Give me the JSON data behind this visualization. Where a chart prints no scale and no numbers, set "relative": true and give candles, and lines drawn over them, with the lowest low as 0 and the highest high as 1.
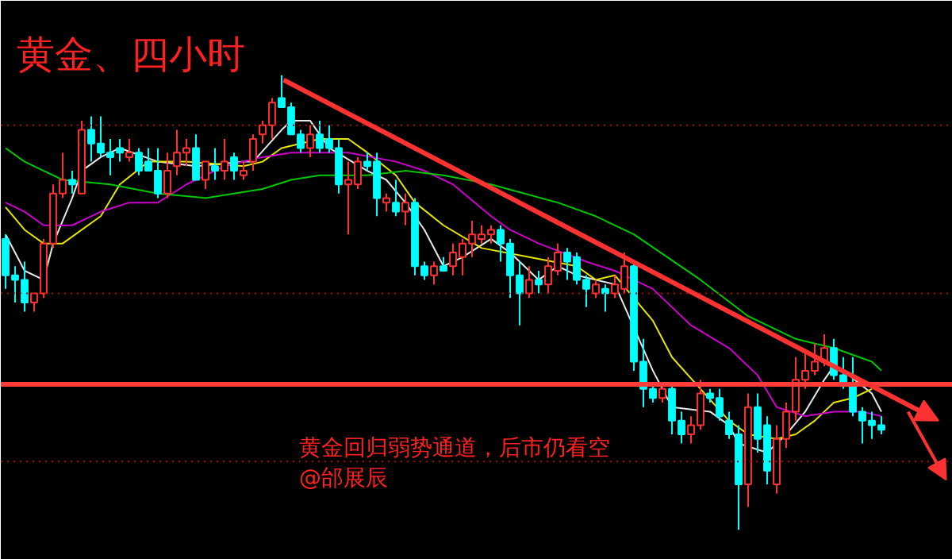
{
  "chart_data": {
    "type": "candlestick",
    "title": "黄金、四小时",
    "relative": true,
    "categories": [
      null,
      null,
      null,
      null,
      null,
      null,
      null,
      null,
      null,
      null,
      null,
      null,
      null,
      null,
      null,
      null,
      null,
      null,
      null,
      null,
      null,
      null,
      null,
      null,
      null,
      null,
      null,
      null,
      null,
      null,
      null,
      null,
      null,
      null,
      null,
      null,
      null,
      null,
      null,
      null,
      null,
      null,
      null,
      null,
      null,
      null,
      null,
      null,
      null,
      null,
      null,
      null,
      null,
      null,
      null,
      null,
      null,
      null,
      null,
      null,
      null,
      null,
      null,
      null,
      null,
      null,
      null,
      null,
      null,
      null,
      null,
      null,
      null,
      null,
      null,
      null,
      null,
      null,
      null,
      null,
      null,
      null,
      null,
      null,
      null,
      null,
      null,
      null,
      null,
      null,
      null,
      null,
      null
    ],
    "ohlc": [
      [
        0.64,
        0.65,
        0.53,
        0.56
      ],
      [
        0.56,
        0.58,
        0.5,
        0.55
      ],
      [
        0.55,
        0.59,
        0.48,
        0.5
      ],
      [
        0.5,
        0.52,
        0.48,
        0.52
      ],
      [
        0.52,
        0.64,
        0.51,
        0.63
      ],
      [
        0.63,
        0.76,
        0.62,
        0.74
      ],
      [
        0.74,
        0.83,
        0.73,
        0.77
      ],
      [
        0.77,
        0.79,
        0.74,
        0.76
      ],
      [
        0.74,
        0.9,
        0.74,
        0.88
      ],
      [
        0.88,
        0.91,
        0.81,
        0.85
      ],
      [
        0.85,
        0.91,
        0.82,
        0.83
      ],
      [
        0.83,
        0.86,
        0.78,
        0.82
      ],
      [
        0.84,
        0.86,
        0.81,
        0.83
      ],
      [
        0.82,
        0.86,
        0.81,
        0.83
      ],
      [
        0.83,
        0.84,
        0.78,
        0.79
      ],
      [
        0.81,
        0.84,
        0.79,
        0.79
      ],
      [
        0.79,
        0.84,
        0.73,
        0.74
      ],
      [
        0.74,
        0.83,
        0.73,
        0.79
      ],
      [
        0.8,
        0.88,
        0.78,
        0.83
      ],
      [
        0.83,
        0.86,
        0.8,
        0.84
      ],
      [
        0.84,
        0.87,
        0.77,
        0.77
      ],
      [
        0.77,
        0.81,
        0.75,
        0.81
      ],
      [
        0.8,
        0.84,
        0.77,
        0.79
      ],
      [
        0.79,
        0.86,
        0.77,
        0.81
      ],
      [
        0.82,
        0.83,
        0.77,
        0.79
      ],
      [
        0.78,
        0.81,
        0.77,
        0.79
      ],
      [
        0.81,
        0.87,
        0.79,
        0.86
      ],
      [
        0.87,
        0.9,
        0.85,
        0.89
      ],
      [
        0.89,
        0.95,
        0.86,
        0.94
      ],
      [
        0.95,
        1.0,
        0.93,
        0.93
      ],
      [
        0.93,
        0.94,
        0.87,
        0.87
      ],
      [
        0.87,
        0.88,
        0.83,
        0.84
      ],
      [
        0.84,
        0.89,
        0.82,
        0.87
      ],
      [
        0.87,
        0.9,
        0.83,
        0.84
      ],
      [
        0.86,
        0.89,
        0.83,
        0.84
      ],
      [
        0.84,
        0.86,
        0.74,
        0.76
      ],
      [
        0.76,
        0.81,
        0.65,
        0.77
      ],
      [
        0.76,
        0.82,
        0.75,
        0.81
      ],
      [
        0.81,
        0.83,
        0.79,
        0.8
      ],
      [
        0.81,
        0.83,
        0.69,
        0.73
      ],
      [
        0.72,
        0.74,
        0.7,
        0.73
      ],
      [
        0.72,
        0.77,
        0.69,
        0.7
      ],
      [
        0.7,
        0.74,
        0.67,
        0.72
      ],
      [
        0.72,
        0.73,
        0.56,
        0.58
      ],
      [
        0.58,
        0.59,
        0.55,
        0.56
      ],
      [
        0.56,
        0.59,
        0.54,
        0.58
      ],
      [
        0.58,
        0.6,
        0.57,
        0.57
      ],
      [
        0.58,
        0.63,
        0.56,
        0.61
      ],
      [
        0.6,
        0.64,
        0.56,
        0.63
      ],
      [
        0.63,
        0.68,
        0.6,
        0.65
      ],
      [
        0.64,
        0.67,
        0.63,
        0.65
      ],
      [
        0.65,
        0.67,
        0.63,
        0.66
      ],
      [
        0.66,
        0.67,
        0.59,
        0.63
      ],
      [
        0.63,
        0.64,
        0.51,
        0.56
      ],
      [
        0.56,
        0.59,
        0.45,
        0.52
      ],
      [
        0.52,
        0.58,
        0.51,
        0.55
      ],
      [
        0.55,
        0.57,
        0.52,
        0.54
      ],
      [
        0.54,
        0.6,
        0.52,
        0.58
      ],
      [
        0.57,
        0.63,
        0.56,
        0.61
      ],
      [
        0.61,
        0.62,
        0.55,
        0.59
      ],
      [
        0.6,
        0.61,
        0.54,
        0.55
      ],
      [
        0.55,
        0.56,
        0.49,
        0.53
      ],
      [
        0.52,
        0.55,
        0.51,
        0.54
      ],
      [
        0.53,
        0.54,
        0.48,
        0.52
      ],
      [
        0.52,
        0.56,
        0.51,
        0.54
      ],
      [
        0.53,
        0.61,
        0.52,
        0.58
      ],
      [
        0.58,
        0.59,
        0.35,
        0.37
      ],
      [
        0.37,
        0.42,
        0.27,
        0.31
      ],
      [
        0.31,
        0.32,
        0.28,
        0.29
      ],
      [
        0.29,
        0.32,
        0.28,
        0.31
      ],
      [
        0.31,
        0.32,
        0.21,
        0.24
      ],
      [
        0.24,
        0.26,
        0.19,
        0.21
      ],
      [
        0.21,
        0.25,
        0.19,
        0.23
      ],
      [
        0.23,
        0.33,
        0.22,
        0.3
      ],
      [
        0.3,
        0.31,
        0.28,
        0.29
      ],
      [
        0.29,
        0.31,
        0.24,
        0.25
      ],
      [
        0.24,
        0.26,
        0.2,
        0.21
      ],
      [
        0.21,
        0.23,
        0.0,
        0.1
      ],
      [
        0.1,
        0.3,
        0.05,
        0.27
      ],
      [
        0.27,
        0.3,
        0.17,
        0.2
      ],
      [
        0.23,
        0.25,
        0.1,
        0.13
      ],
      [
        0.1,
        0.23,
        0.08,
        0.2
      ],
      [
        0.2,
        0.28,
        0.18,
        0.26
      ],
      [
        0.26,
        0.38,
        0.24,
        0.33
      ],
      [
        0.33,
        0.39,
        0.31,
        0.35
      ],
      [
        0.35,
        0.41,
        0.34,
        0.37
      ],
      [
        0.37,
        0.43,
        0.36,
        0.4
      ],
      [
        0.4,
        0.42,
        0.33,
        0.34
      ],
      [
        0.34,
        0.38,
        0.31,
        0.32
      ],
      [
        0.32,
        0.38,
        0.25,
        0.26
      ],
      [
        0.26,
        0.27,
        0.19,
        0.24
      ],
      [
        0.24,
        0.26,
        0.2,
        0.23
      ],
      [
        0.23,
        0.25,
        0.21,
        0.22
      ]
    ],
    "colors": [
      "#00ffff",
      "#00ffff",
      "#00ffff",
      "#ff3232",
      "#ff3232",
      "#ff3232",
      "#ff3232",
      "#00ffff",
      "#ff3232",
      "#00ffff",
      "#00ffff",
      "#00ffff",
      "#00ffff",
      "#ff3232",
      "#00ffff",
      "#00ffff",
      "#00ffff",
      "#ff3232",
      "#ff3232",
      "#ff3232",
      "#00ffff",
      "#ff3232",
      "#00ffff",
      "#ff3232",
      "#00ffff",
      "#ff3232",
      "#ff3232",
      "#ff3232",
      "#ff3232",
      "#00ffff",
      "#00ffff",
      "#00ffff",
      "#ff3232",
      "#00ffff",
      "#00ffff",
      "#00ffff",
      "#ff3232",
      "#ff3232",
      "#00ffff",
      "#00ffff",
      "#ff3232",
      "#00ffff",
      "#ff3232",
      "#00ffff",
      "#00ffff",
      "#ff3232",
      "#00ffff",
      "#ff3232",
      "#ff3232",
      "#ff3232",
      "#ff3232",
      "#ff3232",
      "#00ffff",
      "#00ffff",
      "#00ffff",
      "#ff3232",
      "#00ffff",
      "#ff3232",
      "#ff3232",
      "#00ffff",
      "#00ffff",
      "#00ffff",
      "#ff3232",
      "#00ffff",
      "#ff3232",
      "#ff3232",
      "#00ffff",
      "#00ffff",
      "#00ffff",
      "#ff3232",
      "#00ffff",
      "#00ffff",
      "#ff3232",
      "#ff3232",
      "#00ffff",
      "#00ffff",
      "#00ffff",
      "#00ffff",
      "#ff3232",
      "#00ffff",
      "#00ffff",
      "#ff3232",
      "#ff3232",
      "#ff3232",
      "#ff3232",
      "#ff3232",
      "#ff3232",
      "#00ffff",
      "#00ffff",
      "#00ffff",
      "#00ffff",
      "#00ffff",
      "#00ffff"
    ],
    "series": [
      {
        "type": "line",
        "color": "#e8e8e8",
        "values": [
          0.65,
          null,
          0.57,
          null,
          0.55,
          0.63,
          null,
          0.73,
          0.79,
          null,
          0.82,
          null,
          0.84,
          null,
          null,
          null,
          0.81,
          null,
          null,
          null,
          0.8,
          null,
          null,
          null,
          null,
          0.81,
          0.81,
          null,
          null,
          0.88,
          0.9,
          null,
          0.9,
          null,
          0.84,
          null,
          null,
          null,
          0.79,
          null,
          0.77,
          null,
          0.72,
          null,
          0.66,
          null,
          0.58,
          null,
          0.6,
          null,
          null,
          0.64,
          null,
          0.61,
          null,
          null,
          0.55,
          null,
          0.58,
          null,
          0.56,
          null,
          null,
          null,
          0.54,
          null,
          null,
          null,
          0.35,
          null,
          0.27,
          null,
          null,
          null,
          0.26,
          null,
          0.23,
          0.19,
          null,
          null,
          0.17,
          null,
          0.21,
          null,
          0.26,
          null,
          0.33,
          0.36,
          0.35,
          null,
          null,
          0.3,
          0.26
        ]
      },
      {
        "type": "line",
        "color": "#e6e600",
        "values": [
          0.71,
          null,
          0.66,
          null,
          0.63,
          null,
          0.63,
          null,
          null,
          null,
          0.69,
          null,
          0.76,
          null,
          null,
          0.81,
          null,
          null,
          null,
          0.81,
          null,
          null,
          null,
          null,
          null,
          0.8,
          null,
          0.81,
          null,
          0.84,
          null,
          null,
          null,
          0.86,
          null,
          null,
          0.86,
          null,
          0.83,
          null,
          null,
          0.78,
          null,
          0.72,
          null,
          null,
          0.67,
          null,
          null,
          null,
          0.62,
          null,
          null,
          null,
          null,
          0.6,
          null,
          null,
          null,
          null,
          0.58,
          null,
          0.55,
          null,
          0.56,
          null,
          0.51,
          null,
          0.46,
          null,
          0.38,
          null,
          null,
          0.31,
          null,
          null,
          0.24,
          null,
          0.21,
          null,
          null,
          0.2,
          null,
          0.21,
          null,
          0.24,
          null,
          0.28,
          null,
          0.29,
          null,
          0.31,
          null
        ]
      },
      {
        "type": "line",
        "color": "#cc00cc",
        "values": [
          0.72,
          null,
          0.7,
          null,
          0.67,
          null,
          null,
          0.67,
          null,
          null,
          0.7,
          null,
          null,
          0.72,
          null,
          null,
          0.72,
          null,
          null,
          0.76,
          null,
          null,
          null,
          0.8,
          null,
          null,
          null,
          0.82,
          null,
          null,
          0.83,
          null,
          null,
          null,
          0.83,
          null,
          0.83,
          null,
          null,
          null,
          null,
          0.81,
          null,
          null,
          0.79,
          null,
          null,
          0.76,
          null,
          null,
          null,
          0.69,
          null,
          0.66,
          null,
          null,
          0.63,
          null,
          null,
          null,
          null,
          0.59,
          null,
          null,
          0.57,
          null,
          null,
          null,
          0.53,
          null,
          null,
          null,
          0.45,
          null,
          null,
          null,
          0.4,
          null,
          null,
          0.34,
          null,
          0.27,
          null,
          null,
          0.25,
          null,
          null,
          0.26,
          null,
          null,
          0.26,
          null,
          0.25
        ]
      },
      {
        "type": "line",
        "color": "#00c800",
        "values": [
          0.84,
          null,
          0.81,
          null,
          null,
          null,
          0.77,
          null,
          null,
          null,
          null,
          0.76,
          null,
          null,
          null,
          null,
          0.74,
          null,
          null,
          null,
          null,
          0.73,
          null,
          null,
          null,
          null,
          null,
          0.75,
          null,
          null,
          0.77,
          null,
          null,
          0.78,
          null,
          null,
          null,
          null,
          0.78,
          null,
          null,
          null,
          0.79,
          null,
          null,
          null,
          0.78,
          null,
          null,
          null,
          null,
          0.76,
          null,
          null,
          null,
          null,
          null,
          null,
          0.72,
          null,
          null,
          null,
          0.69,
          null,
          null,
          null,
          0.65,
          null,
          null,
          null,
          null,
          null,
          null,
          0.55,
          null,
          null,
          null,
          null,
          0.47,
          null,
          null,
          null,
          null,
          0.42,
          null,
          null,
          null,
          0.4,
          null,
          null,
          null,
          0.37,
          0.35
        ]
      }
    ],
    "ref_lines": [
      {
        "axis": "y",
        "value": 0.89,
        "color": "#b40000",
        "line_style": "dotted"
      },
      {
        "axis": "y",
        "value": 0.52,
        "color": "#b40000",
        "line_style": "dotted"
      },
      {
        "axis": "y",
        "value": 0.15,
        "color": "#b40000",
        "line_style": "dotted"
      },
      {
        "axis": "y",
        "value": 0.32,
        "color": "#ff3c3c",
        "line_style": "solid"
      }
    ],
    "annotations": [
      "黄金回归弱势通道，后市仍看空",
      "@邰展辰"
    ],
    "grid": false
  }
}
